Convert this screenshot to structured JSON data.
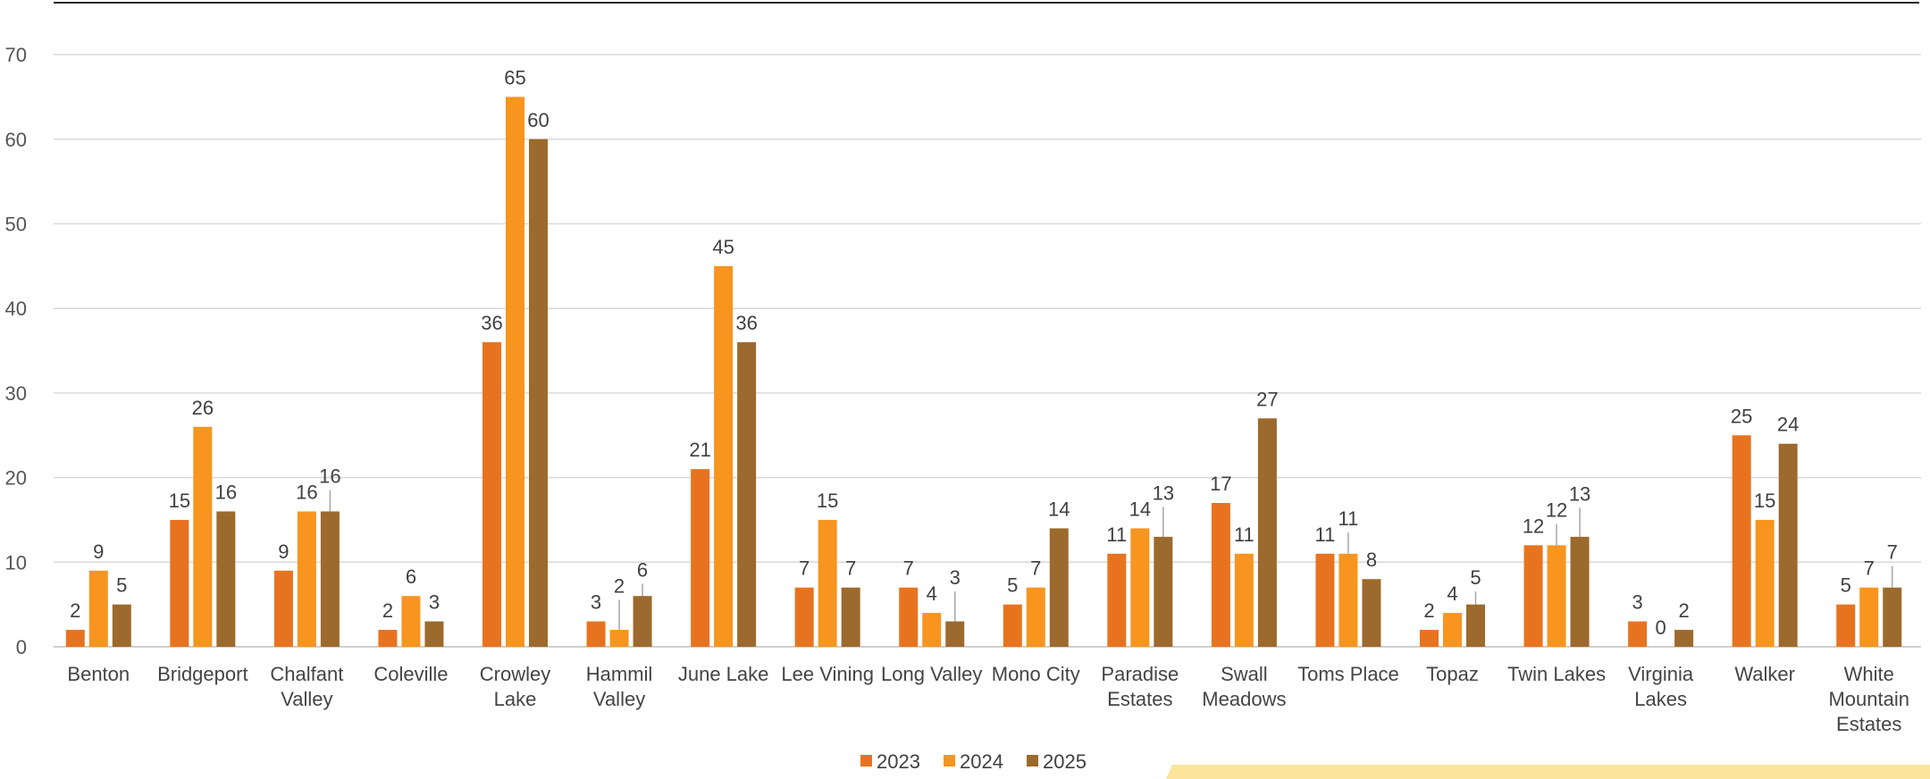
{
  "chart_data": {
    "type": "bar",
    "categories": [
      [
        "Benton"
      ],
      [
        "Bridgeport"
      ],
      [
        "Chalfant",
        "Valley"
      ],
      [
        "Coleville"
      ],
      [
        "Crowley",
        "Lake"
      ],
      [
        "Hammil",
        "Valley"
      ],
      [
        "June Lake"
      ],
      [
        "Lee Vining"
      ],
      [
        "Long Valley"
      ],
      [
        "Mono City"
      ],
      [
        "Paradise",
        "Estates"
      ],
      [
        "Swall",
        "Meadows"
      ],
      [
        "Toms Place"
      ],
      [
        "Topaz"
      ],
      [
        "Twin Lakes"
      ],
      [
        "Virginia",
        "Lakes"
      ],
      [
        "Walker"
      ],
      [
        "White",
        "Mountain",
        "Estates"
      ]
    ],
    "series": [
      {
        "name": "2023",
        "color": "#E8731F",
        "values": [
          2,
          15,
          9,
          2,
          36,
          3,
          21,
          7,
          7,
          5,
          11,
          17,
          11,
          2,
          12,
          3,
          25,
          5
        ]
      },
      {
        "name": "2024",
        "color": "#F7951F",
        "values": [
          9,
          26,
          16,
          6,
          65,
          2,
          45,
          15,
          4,
          7,
          14,
          11,
          11,
          4,
          12,
          0,
          15,
          7
        ]
      },
      {
        "name": "2025",
        "color": "#9C6A2C",
        "values": [
          5,
          16,
          16,
          3,
          60,
          6,
          36,
          7,
          3,
          14,
          13,
          27,
          8,
          5,
          13,
          2,
          24,
          7
        ]
      }
    ],
    "y_ticks": [
      "0",
      "10",
      "20",
      "30",
      "40",
      "50",
      "60",
      "70"
    ],
    "ylim": [
      0,
      70
    ],
    "grid": true,
    "legend": "bottom-center",
    "title": "",
    "xlabel": "",
    "ylabel": ""
  },
  "colors": {
    "gridline": "#D9D9D9",
    "axis": "#BFBFBF",
    "top_rule": "#262626",
    "footer_band": "#FBE59A"
  }
}
